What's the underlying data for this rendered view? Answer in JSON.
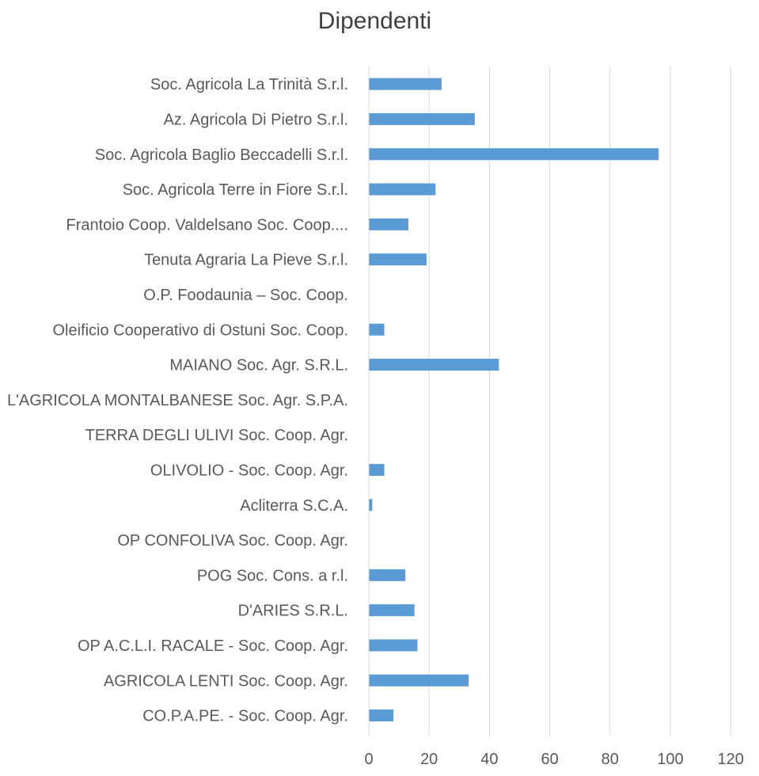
{
  "chart_data": {
    "type": "bar",
    "orientation": "horizontal",
    "title": "Dipendenti",
    "xlabel": "",
    "ylabel": "",
    "xlim": [
      0,
      120
    ],
    "xticks": [
      "0",
      "20",
      "40",
      "60",
      "80",
      "100",
      "120"
    ],
    "grid": true,
    "bar_color": "#5b9bd5",
    "categories": [
      "Soc. Agricola La Trinità S.r.l.",
      "Az. Agricola Di Pietro S.r.l.",
      "Soc. Agricola Baglio Beccadelli S.r.l.",
      "Soc. Agricola Terre in Fiore S.r.l.",
      "Frantoio Coop. Valdelsano Soc. Coop....",
      "Tenuta Agraria La Pieve S.r.l.",
      "O.P. Foodaunia –  Soc. Coop.",
      "Oleificio Cooperativo di Ostuni Soc. Coop.",
      "MAIANO Soc. Agr. S.R.L.",
      "L'AGRICOLA MONTALBANESE Soc.  Agr. S.P.A.",
      "TERRA DEGLI ULIVI Soc. Coop. Agr.",
      "OLIVOLIO - Soc. Coop. Agr.",
      "Acliterra S.C.A.",
      "OP CONFOLIVA Soc. Coop. Agr.",
      "POG Soc. Cons. a r.l.",
      "D'ARIES S.R.L.",
      "OP A.C.L.I. RACALE - Soc. Coop. Agr.",
      "AGRICOLA LENTI Soc. Coop. Agr.",
      "CO.P.A.PE. - Soc. Coop. Agr."
    ],
    "values": [
      24,
      35,
      96,
      22,
      13,
      19,
      0,
      5,
      43,
      0,
      0,
      5,
      1,
      0,
      12,
      15,
      16,
      33,
      8
    ]
  }
}
